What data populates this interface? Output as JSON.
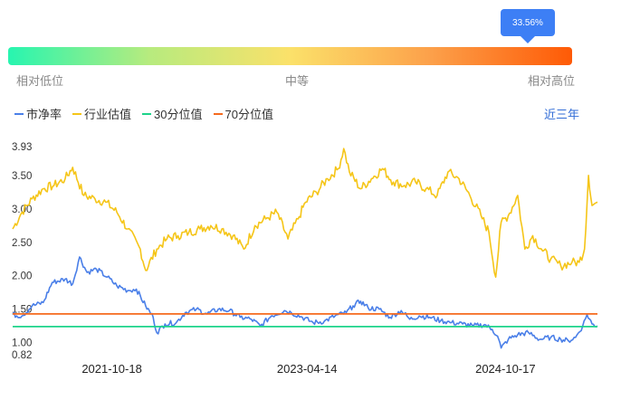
{
  "percentile_badge": "33.56%",
  "gauge": {
    "low_label": "相对低位",
    "mid_label": "中等",
    "high_label": "相对高位"
  },
  "range_link": "近三年",
  "colors": {
    "pb": "#4a7fe8",
    "industry": "#f5c518",
    "p30": "#1dd38a",
    "p70": "#f56a1e",
    "accent": "#3d7ff5"
  },
  "chart_data": {
    "type": "line",
    "title": "",
    "xlabel": "",
    "ylabel": "",
    "ylim": [
      0.82,
      3.93
    ],
    "y_ticks": [
      "3.93",
      "3.50",
      "3.00",
      "2.50",
      "2.00",
      "1.50",
      "1.00",
      "0.82"
    ],
    "x_ticks": [
      "2021-10-18",
      "2023-04-14",
      "2024-10-17"
    ],
    "x_start": "2021-01-15",
    "x_end": "2025-06-30",
    "legend_position": "top-left",
    "grid": false,
    "series": [
      {
        "name": "市净率",
        "key": "pb",
        "points": [
          [
            "2021-01-15",
            1.42
          ],
          [
            "2021-02-10",
            1.4
          ],
          [
            "2021-03-10",
            1.55
          ],
          [
            "2021-04-10",
            1.6
          ],
          [
            "2021-05-05",
            1.9
          ],
          [
            "2021-06-10",
            1.95
          ],
          [
            "2021-07-01",
            1.88
          ],
          [
            "2021-07-20",
            2.28
          ],
          [
            "2021-08-10",
            2.05
          ],
          [
            "2021-09-05",
            2.1
          ],
          [
            "2021-10-05",
            1.98
          ],
          [
            "2021-11-01",
            1.85
          ],
          [
            "2021-12-01",
            1.78
          ],
          [
            "2021-12-25",
            1.8
          ],
          [
            "2022-01-20",
            1.55
          ],
          [
            "2022-02-10",
            1.38
          ],
          [
            "2022-02-20",
            1.15
          ],
          [
            "2022-03-15",
            1.28
          ],
          [
            "2022-04-15",
            1.3
          ],
          [
            "2022-05-10",
            1.45
          ],
          [
            "2022-06-10",
            1.5
          ],
          [
            "2022-07-10",
            1.43
          ],
          [
            "2022-08-10",
            1.5
          ],
          [
            "2022-09-10",
            1.48
          ],
          [
            "2022-10-10",
            1.38
          ],
          [
            "2022-11-10",
            1.35
          ],
          [
            "2022-12-05",
            1.25
          ],
          [
            "2023-01-05",
            1.4
          ],
          [
            "2023-02-10",
            1.48
          ],
          [
            "2023-03-01",
            1.45
          ],
          [
            "2023-04-01",
            1.38
          ],
          [
            "2023-05-01",
            1.3
          ],
          [
            "2023-06-01",
            1.32
          ],
          [
            "2023-07-01",
            1.4
          ],
          [
            "2023-08-01",
            1.45
          ],
          [
            "2023-08-20",
            1.55
          ],
          [
            "2023-09-10",
            1.62
          ],
          [
            "2023-10-01",
            1.52
          ],
          [
            "2023-11-01",
            1.5
          ],
          [
            "2023-12-01",
            1.38
          ],
          [
            "2024-01-01",
            1.48
          ],
          [
            "2024-01-25",
            1.35
          ],
          [
            "2024-02-20",
            1.4
          ],
          [
            "2024-03-20",
            1.38
          ],
          [
            "2024-04-20",
            1.33
          ],
          [
            "2024-05-20",
            1.3
          ],
          [
            "2024-06-20",
            1.28
          ],
          [
            "2024-07-20",
            1.25
          ],
          [
            "2024-08-20",
            1.27
          ],
          [
            "2024-09-10",
            1.2
          ],
          [
            "2024-09-25",
            1.1
          ],
          [
            "2024-10-05",
            0.92
          ],
          [
            "2024-10-25",
            1.05
          ],
          [
            "2024-11-20",
            1.12
          ],
          [
            "2024-12-20",
            1.15
          ],
          [
            "2025-01-20",
            1.05
          ],
          [
            "2025-02-20",
            1.08
          ],
          [
            "2025-03-20",
            1.05
          ],
          [
            "2025-04-10",
            1.03
          ],
          [
            "2025-04-30",
            1.08
          ],
          [
            "2025-05-20",
            1.25
          ],
          [
            "2025-06-01",
            1.42
          ],
          [
            "2025-06-15",
            1.28
          ],
          [
            "2025-06-30",
            1.25
          ]
        ]
      },
      {
        "name": "行业估值",
        "key": "industry",
        "points": [
          [
            "2021-01-15",
            2.7
          ],
          [
            "2021-02-10",
            2.95
          ],
          [
            "2021-03-10",
            3.15
          ],
          [
            "2021-04-10",
            3.3
          ],
          [
            "2021-05-10",
            3.35
          ],
          [
            "2021-06-10",
            3.45
          ],
          [
            "2021-07-01",
            3.62
          ],
          [
            "2021-08-01",
            3.2
          ],
          [
            "2021-09-01",
            3.15
          ],
          [
            "2021-10-01",
            3.1
          ],
          [
            "2021-11-01",
            2.95
          ],
          [
            "2021-12-01",
            2.7
          ],
          [
            "2022-01-05",
            2.4
          ],
          [
            "2022-01-20",
            2.08
          ],
          [
            "2022-02-20",
            2.4
          ],
          [
            "2022-03-20",
            2.55
          ],
          [
            "2022-04-20",
            2.6
          ],
          [
            "2022-05-20",
            2.65
          ],
          [
            "2022-06-20",
            2.7
          ],
          [
            "2022-07-20",
            2.75
          ],
          [
            "2022-08-20",
            2.7
          ],
          [
            "2022-09-20",
            2.6
          ],
          [
            "2022-10-20",
            2.4
          ],
          [
            "2022-11-20",
            2.75
          ],
          [
            "2022-12-20",
            2.85
          ],
          [
            "2023-01-20",
            2.95
          ],
          [
            "2023-02-20",
            2.55
          ],
          [
            "2023-03-20",
            2.85
          ],
          [
            "2023-04-10",
            3.1
          ],
          [
            "2023-05-10",
            3.25
          ],
          [
            "2023-06-10",
            3.45
          ],
          [
            "2023-07-10",
            3.6
          ],
          [
            "2023-07-25",
            3.9
          ],
          [
            "2023-08-10",
            3.55
          ],
          [
            "2023-09-10",
            3.3
          ],
          [
            "2023-10-10",
            3.45
          ],
          [
            "2023-11-10",
            3.6
          ],
          [
            "2023-12-10",
            3.4
          ],
          [
            "2024-01-10",
            3.35
          ],
          [
            "2024-02-10",
            3.4
          ],
          [
            "2024-03-10",
            3.3
          ],
          [
            "2024-04-10",
            3.2
          ],
          [
            "2024-05-10",
            3.55
          ],
          [
            "2024-06-10",
            3.45
          ],
          [
            "2024-07-10",
            3.2
          ],
          [
            "2024-08-10",
            2.9
          ],
          [
            "2024-09-01",
            2.65
          ],
          [
            "2024-09-20",
            1.98
          ],
          [
            "2024-10-05",
            2.8
          ],
          [
            "2024-10-25",
            2.9
          ],
          [
            "2024-11-20",
            3.2
          ],
          [
            "2024-12-10",
            2.4
          ],
          [
            "2025-01-01",
            2.6
          ],
          [
            "2025-01-25",
            2.4
          ],
          [
            "2025-02-20",
            2.25
          ],
          [
            "2025-03-20",
            2.15
          ],
          [
            "2025-04-20",
            2.2
          ],
          [
            "2025-05-10",
            2.2
          ],
          [
            "2025-05-25",
            2.4
          ],
          [
            "2025-06-05",
            3.5
          ],
          [
            "2025-06-15",
            3.05
          ],
          [
            "2025-06-30",
            3.1
          ]
        ]
      },
      {
        "name": "30分位值",
        "key": "p30",
        "points": [
          [
            "2021-01-15",
            1.24
          ],
          [
            "2025-06-30",
            1.24
          ]
        ]
      },
      {
        "name": "70分位值",
        "key": "p70",
        "points": [
          [
            "2021-01-15",
            1.43
          ],
          [
            "2025-06-30",
            1.43
          ]
        ]
      }
    ]
  }
}
